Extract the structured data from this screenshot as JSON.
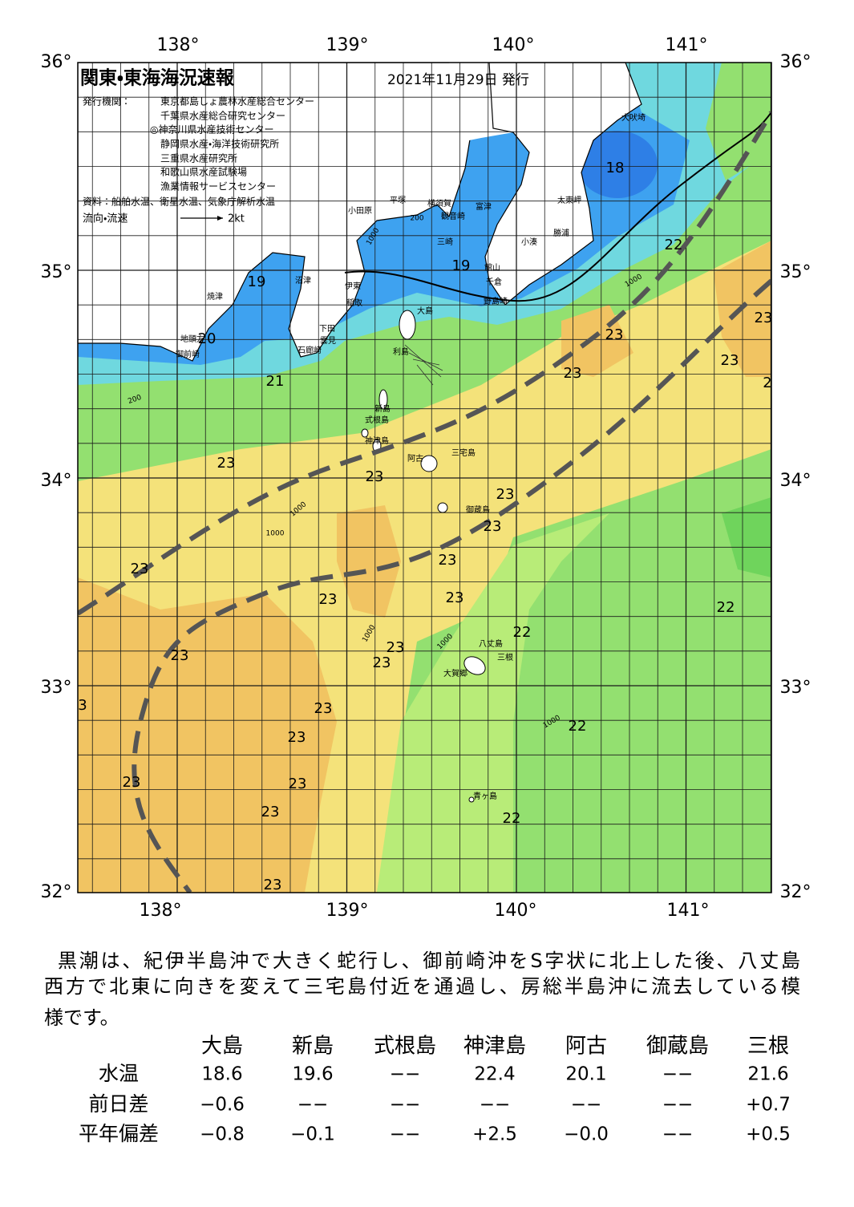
{
  "map": {
    "title": "関東・東海海況速報",
    "date": "2021年11月29日 発行",
    "issuer_label": "発行機関：",
    "issuers": [
      "東京都島しょ農林水産総合センター",
      "千葉県水産総合研究センター",
      "◎神奈川県水産技術センター",
      "静岡県水産・海洋技術研究所",
      "三重県水産研究所",
      "和歌山県水産試験場",
      "漁業情報サービスセンター"
    ],
    "source": "資料：船舶水温、衛星水温、気象庁解析水温",
    "legend": {
      "label": "流向・流速",
      "speed": "2kt"
    },
    "lon_labels": [
      "138°",
      "139°",
      "140°",
      "141°"
    ],
    "lat_labels": [
      "36°",
      "35°",
      "34°",
      "33°",
      "32°"
    ],
    "place_labels": [
      "犬吠埼",
      "太東岬",
      "勝浦",
      "小湊",
      "館山",
      "千倉",
      "野島崎",
      "富津",
      "観音崎",
      "横須賀",
      "平塚",
      "小田原",
      "三崎",
      "伊東",
      "沼津",
      "焼津",
      "地頭方",
      "御前崎",
      "稲取",
      "下田",
      "雲見",
      "石廊崎",
      "大島",
      "利島",
      "新島",
      "式根島",
      "神津島",
      "三宅島",
      "阿古",
      "御蔵島",
      "八丈島",
      "大賀郷",
      "三根",
      "青ヶ島"
    ],
    "depth_labels": [
      "1000",
      "200",
      "1000",
      "200",
      "1000",
      "1000",
      "1000",
      "1000",
      "1000"
    ],
    "temperature_labels": [
      "18",
      "22",
      "19",
      "19",
      "20",
      "21",
      "23",
      "23",
      "23",
      "23",
      "2",
      "23",
      "23",
      "23",
      "23",
      "23",
      "23",
      "23",
      "23",
      "22",
      "22",
      "23",
      "23",
      "23",
      "3",
      "23",
      "23",
      "22",
      "23",
      "23",
      "23",
      "22",
      "23"
    ]
  },
  "description": [
    "黒潮は、紀伊半島沖で大きく蛇行し、御前崎沖をS字状に北上した後、八丈島",
    "西方で北東に向きを変えて三宅島付近を通過し、房総半島沖に流去している模",
    "様です。"
  ],
  "table": {
    "columns": [
      "大島",
      "新島",
      "式根島",
      "神津島",
      "阿古",
      "御蔵島",
      "三根"
    ],
    "rows": [
      {
        "label": "水温",
        "cells": [
          "18.6",
          "19.6",
          "−−",
          "22.4",
          "20.1",
          "−−",
          "21.6"
        ]
      },
      {
        "label": "前日差",
        "cells": [
          "−0.6",
          "−−",
          "−−",
          "−−",
          "−−",
          "−−",
          "+0.7"
        ]
      },
      {
        "label": "平年偏差",
        "cells": [
          "−0.8",
          "−0.1",
          "−−",
          "+2.5",
          "−0.0",
          "−−",
          "+0.5"
        ]
      }
    ]
  }
}
